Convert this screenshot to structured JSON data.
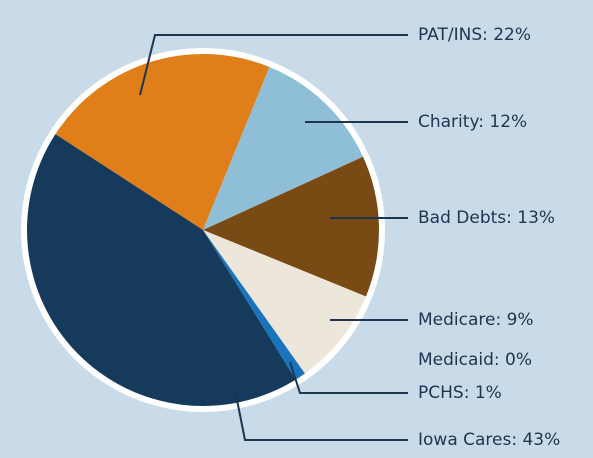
{
  "chart_data": {
    "type": "pie",
    "values": [
      22,
      12,
      13,
      9,
      0,
      1,
      43
    ],
    "value_labels": [
      "PAT/INS: 22%",
      "Charity: 12%",
      "Bad Debts: 13%",
      "Medicare: 9%",
      "Medicaid: 0%",
      "PCHS: 1%",
      "Iowa Cares: 43%"
    ],
    "colors": [
      "#e07f1a",
      "#8fbfd6",
      "#7a4a14",
      "#ece7da",
      "#2a86cc",
      "#1a74bd",
      "#163a5c"
    ]
  }
}
